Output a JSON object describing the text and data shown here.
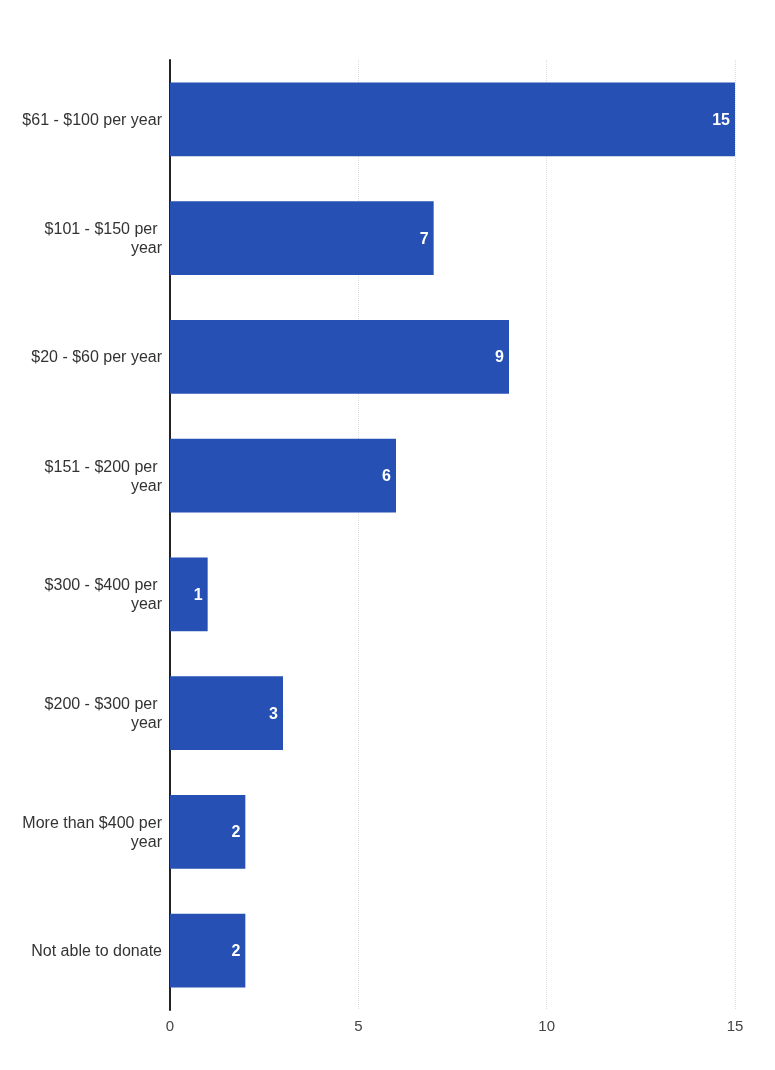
{
  "chart_data": {
    "type": "bar",
    "orientation": "horizontal",
    "categories": [
      "$61 - $100 per year",
      "$101 - $150 per year",
      "$20 - $60 per year",
      "$151 - $200 per year",
      "$300 - $400 per year",
      "$200 - $300 per year",
      "More than $400 per year",
      "Not able to donate"
    ],
    "values": [
      15,
      7,
      9,
      6,
      1,
      3,
      2,
      2
    ],
    "color": "#2650b4",
    "xlim": [
      0,
      15
    ],
    "xticks": [
      0,
      5,
      10,
      15
    ],
    "grid": "x",
    "data_labels": true
  }
}
